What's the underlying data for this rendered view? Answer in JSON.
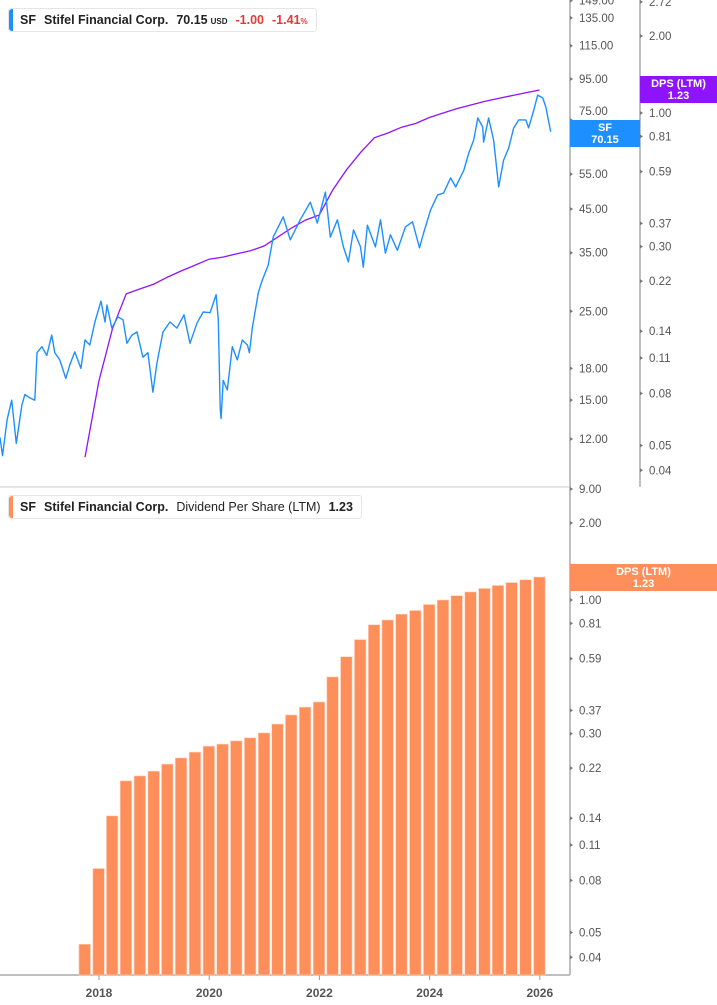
{
  "top_legend": {
    "ticker": "SF",
    "name": "Stifel Financial Corp.",
    "price": "70.15",
    "currency": "USD",
    "change": "-1.00",
    "change_pct": "-1.41",
    "pct_sign": "%"
  },
  "bottom_legend": {
    "ticker": "SF",
    "name": "Stifel Financial Corp.",
    "metric": "Dividend Per Share (LTM)",
    "value": "1.23"
  },
  "badges": {
    "price": {
      "label": "SF",
      "value": "70.15"
    },
    "dps_top": {
      "label": "DPS (LTM)",
      "value": "1.23"
    },
    "dps_bottom": {
      "label": "DPS (LTM)",
      "value": "1.23"
    }
  },
  "colors": {
    "price_line": "#1e8fff",
    "dps_line": "#9013fe",
    "dps_bars": "#fe8f5a",
    "negative": "#e53935"
  },
  "chart_data": [
    {
      "type": "line",
      "scale": "log",
      "series": [
        {
          "name": "SF",
          "color": "#1e8fff",
          "axis": "price",
          "points": [
            [
              "2016-03-15",
              12.1
            ],
            [
              "2016-04-01",
              10.9
            ],
            [
              "2016-05-01",
              13.4
            ],
            [
              "2016-06-01",
              15.0
            ],
            [
              "2016-07-01",
              11.7
            ],
            [
              "2016-08-07",
              14.6
            ],
            [
              "2016-08-27",
              15.5
            ],
            [
              "2016-09-29",
              15.2
            ],
            [
              "2016-11-01",
              15.0
            ],
            [
              "2016-11-15",
              19.7
            ],
            [
              "2016-12-18",
              20.4
            ],
            [
              "2017-01-20",
              19.4
            ],
            [
              "2017-02-22",
              21.8
            ],
            [
              "2017-03-14",
              19.7
            ],
            [
              "2017-04-16",
              18.9
            ],
            [
              "2017-05-26",
              17.0
            ],
            [
              "2017-06-22",
              18.4
            ],
            [
              "2017-07-25",
              19.8
            ],
            [
              "2017-09-03",
              18.0
            ],
            [
              "2017-09-30",
              21.2
            ],
            [
              "2017-11-01",
              20.6
            ],
            [
              "2017-12-05",
              23.5
            ],
            [
              "2018-01-14",
              26.5
            ],
            [
              "2018-02-10",
              23.5
            ],
            [
              "2018-02-23",
              25.9
            ],
            [
              "2018-03-27",
              22.7
            ],
            [
              "2018-05-06",
              24.2
            ],
            [
              "2018-06-09",
              23.8
            ],
            [
              "2018-07-05",
              20.8
            ],
            [
              "2018-08-07",
              21.8
            ],
            [
              "2018-09-10",
              22.2
            ],
            [
              "2018-10-19",
              19.2
            ],
            [
              "2018-11-21",
              19.7
            ],
            [
              "2018-12-24",
              15.7
            ],
            [
              "2019-01-20",
              18.6
            ],
            [
              "2019-03-01",
              22.2
            ],
            [
              "2019-04-16",
              23.5
            ],
            [
              "2019-06-02",
              22.7
            ],
            [
              "2019-07-18",
              24.5
            ],
            [
              "2019-08-27",
              20.8
            ],
            [
              "2019-10-13",
              23.4
            ],
            [
              "2019-11-22",
              24.9
            ],
            [
              "2020-01-07",
              24.8
            ],
            [
              "2020-02-16",
              27.5
            ],
            [
              "2020-03-01",
              23.8
            ],
            [
              "2020-03-14",
              14.3
            ],
            [
              "2020-03-20",
              13.5
            ],
            [
              "2020-04-03",
              16.8
            ],
            [
              "2020-04-30",
              15.9
            ],
            [
              "2020-06-02",
              20.4
            ],
            [
              "2020-07-05",
              18.9
            ],
            [
              "2020-08-07",
              21.2
            ],
            [
              "2020-09-10",
              20.6
            ],
            [
              "2020-09-23",
              19.7
            ],
            [
              "2020-10-13",
              22.8
            ],
            [
              "2020-11-02",
              25.2
            ],
            [
              "2020-11-22",
              27.9
            ],
            [
              "2020-12-18",
              29.9
            ],
            [
              "2021-01-27",
              32.6
            ],
            [
              "2021-03-01",
              38.3
            ],
            [
              "2021-05-06",
              43.0
            ],
            [
              "2021-06-22",
              37.7
            ],
            [
              "2021-08-27",
              42.3
            ],
            [
              "2021-11-02",
              46.8
            ],
            [
              "2021-12-18",
              41.5
            ],
            [
              "2022-02-10",
              49.6
            ],
            [
              "2022-03-14",
              38.3
            ],
            [
              "2022-04-30",
              42.3
            ],
            [
              "2022-06-09",
              36.2
            ],
            [
              "2022-07-12",
              33.2
            ],
            [
              "2022-08-15",
              39.9
            ],
            [
              "2022-09-30",
              36.2
            ],
            [
              "2022-10-19",
              32.2
            ],
            [
              "2022-11-15",
              41.0
            ],
            [
              "2023-01-07",
              36.2
            ],
            [
              "2023-02-10",
              42.3
            ],
            [
              "2023-03-14",
              34.9
            ],
            [
              "2023-04-16",
              38.8
            ],
            [
              "2023-06-02",
              35.5
            ],
            [
              "2023-07-25",
              40.6
            ],
            [
              "2023-09-10",
              41.8
            ],
            [
              "2023-10-26",
              36.0
            ],
            [
              "2023-11-22",
              39.2
            ],
            [
              "2024-01-07",
              44.7
            ],
            [
              "2024-02-23",
              48.8
            ],
            [
              "2024-04-03",
              49.3
            ],
            [
              "2024-05-19",
              53.8
            ],
            [
              "2024-06-22",
              51.1
            ],
            [
              "2024-08-15",
              56.3
            ],
            [
              "2024-09-17",
              62.1
            ],
            [
              "2024-10-19",
              66.9
            ],
            [
              "2024-11-15",
              75.9
            ],
            [
              "2024-12-18",
              72.1
            ],
            [
              "2024-12-24",
              66.1
            ],
            [
              "2025-01-27",
              75.9
            ],
            [
              "2025-03-01",
              66.9
            ],
            [
              "2025-04-04",
              51.1
            ],
            [
              "2025-05-06",
              59.6
            ],
            [
              "2025-06-09",
              63.9
            ],
            [
              "2025-07-12",
              71.7
            ],
            [
              "2025-08-15",
              75.1
            ],
            [
              "2025-09-30",
              75.1
            ],
            [
              "2025-10-19",
              71.7
            ],
            [
              "2025-11-22",
              79.5
            ],
            [
              "2025-12-18",
              86.6
            ],
            [
              "2026-01-20",
              85.2
            ],
            [
              "2026-02-10",
              80.9
            ],
            [
              "2026-03-14",
              70.15
            ]
          ]
        },
        {
          "name": "DPS (LTM)",
          "color": "#9013fe",
          "axis": "dps",
          "uses": "dps_series"
        }
      ],
      "price_axis": {
        "ticks": [
          "149.00",
          "135.00",
          "115.00",
          "95.00",
          "75.00",
          "55.00",
          "45.00",
          "35.00",
          "25.00",
          "18.00",
          "15.00",
          "12.00",
          "9.00"
        ],
        "ylim": [
          9,
          149
        ]
      },
      "dps_axis": {
        "ticks": [
          "2.72",
          "2.00",
          "1.00",
          "0.81",
          "0.59",
          "0.37",
          "0.30",
          "0.22",
          "0.14",
          "0.11",
          "0.08",
          "0.05",
          "0.04"
        ],
        "ylim": [
          0.04,
          2.72
        ]
      },
      "grid": false
    },
    {
      "type": "bar",
      "scale": "log",
      "name": "Dividend Per Share (LTM)",
      "dates": [
        "2017-09-30",
        "2017-12-31",
        "2018-03-31",
        "2018-06-30",
        "2018-09-30",
        "2018-12-31",
        "2019-03-31",
        "2019-06-30",
        "2019-09-30",
        "2019-12-31",
        "2020-03-31",
        "2020-06-30",
        "2020-09-30",
        "2020-12-31",
        "2021-03-31",
        "2021-06-30",
        "2021-09-30",
        "2021-12-31",
        "2022-03-31",
        "2022-06-30",
        "2022-09-30",
        "2022-12-31",
        "2023-03-31",
        "2023-06-30",
        "2023-09-30",
        "2023-12-31",
        "2024-03-31",
        "2024-06-30",
        "2024-09-30",
        "2024-12-31",
        "2025-03-31",
        "2025-06-30",
        "2025-09-30",
        "2025-12-31"
      ],
      "values": [
        0.045,
        0.089,
        0.143,
        0.196,
        0.205,
        0.214,
        0.228,
        0.241,
        0.254,
        0.268,
        0.273,
        0.281,
        0.289,
        0.302,
        0.327,
        0.355,
        0.381,
        0.399,
        0.5,
        0.6,
        0.7,
        0.8,
        0.835,
        0.88,
        0.91,
        0.96,
        1.0,
        1.04,
        1.075,
        1.11,
        1.14,
        1.17,
        1.2,
        1.23
      ],
      "y_ticks": [
        "2.00",
        "1.00",
        "0.81",
        "0.59",
        "0.37",
        "0.30",
        "0.22",
        "0.14",
        "0.11",
        "0.08",
        "0.05",
        "0.04"
      ],
      "x_ticks": [
        "2018",
        "2020",
        "2022",
        "2024",
        "2026"
      ],
      "grid": false
    }
  ]
}
